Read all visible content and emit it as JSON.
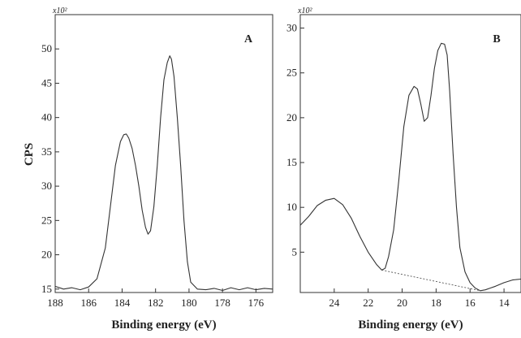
{
  "chart_data": [
    {
      "type": "line",
      "panel_label": "A",
      "ylabel": "CPS",
      "xlabel": "Binding energy (eV)",
      "y_scale_note": "x10²",
      "xlim": [
        188,
        175
      ],
      "ylim": [
        14.5,
        55
      ],
      "xticks": [
        188,
        186,
        184,
        182,
        180,
        178,
        176
      ],
      "yticks": [
        15,
        20,
        25,
        30,
        35,
        40,
        45,
        50
      ],
      "grid": false,
      "series": [
        {
          "x": [
            188,
            187.5,
            187,
            186.5,
            186,
            185.5,
            185,
            184.7,
            184.4,
            184.1,
            183.9,
            183.75,
            183.6,
            183.4,
            183.2,
            183,
            182.8,
            182.6,
            182.45,
            182.3,
            182.1,
            181.9,
            181.7,
            181.5,
            181.3,
            181.15,
            181.05,
            180.9,
            180.7,
            180.5,
            180.3,
            180.1,
            179.9,
            179.5,
            179,
            178.5,
            178,
            177.5,
            177,
            176.5,
            176,
            175.5,
            175
          ],
          "y": [
            15.4,
            15.0,
            15.2,
            14.9,
            15.3,
            16.5,
            21,
            27,
            33,
            36.5,
            37.5,
            37.6,
            37,
            35.5,
            33,
            30,
            26.5,
            24,
            23,
            23.5,
            27,
            33,
            40,
            45.5,
            48,
            49,
            48.5,
            46,
            40,
            33,
            25,
            19,
            16,
            15,
            14.9,
            15.1,
            14.8,
            15.2,
            14.9,
            15.2,
            14.9,
            15.1,
            15.0
          ]
        }
      ]
    },
    {
      "type": "line",
      "panel_label": "B",
      "ylabel": "",
      "xlabel": "Binding energy (eV)",
      "y_scale_note": "x10²",
      "xlim": [
        26,
        13
      ],
      "ylim": [
        0.5,
        31.5
      ],
      "xticks": [
        24,
        22,
        20,
        18,
        16,
        14
      ],
      "yticks": [
        5,
        10,
        15,
        20,
        25,
        30
      ],
      "grid": false,
      "series": [
        {
          "x": [
            26,
            25.5,
            25,
            24.5,
            24,
            23.5,
            23,
            22.5,
            22,
            21.5,
            21.2,
            21,
            20.8,
            20.5,
            20.2,
            19.9,
            19.6,
            19.3,
            19.1,
            18.9,
            18.7,
            18.5,
            18.3,
            18.1,
            17.9,
            17.7,
            17.5,
            17.35,
            17.2,
            17,
            16.8,
            16.6,
            16.3,
            16,
            15.7,
            15.4,
            15.1,
            14.8,
            14.5,
            14,
            13.5,
            13
          ],
          "y": [
            8,
            9,
            10.2,
            10.8,
            11,
            10.3,
            8.8,
            6.8,
            5,
            3.6,
            3.0,
            3.2,
            4.5,
            7.5,
            13,
            19,
            22.5,
            23.5,
            23.2,
            21.5,
            19.6,
            20,
            22.5,
            25.5,
            27.5,
            28.3,
            28.2,
            27,
            23,
            16,
            10,
            5.5,
            2.8,
            1.6,
            1.0,
            0.7,
            0.8,
            1.0,
            1.2,
            1.6,
            1.9,
            2.0
          ]
        }
      ],
      "background_line": {
        "x": [
          21.2,
          15.4
        ],
        "y": [
          3.0,
          0.7
        ]
      }
    }
  ]
}
